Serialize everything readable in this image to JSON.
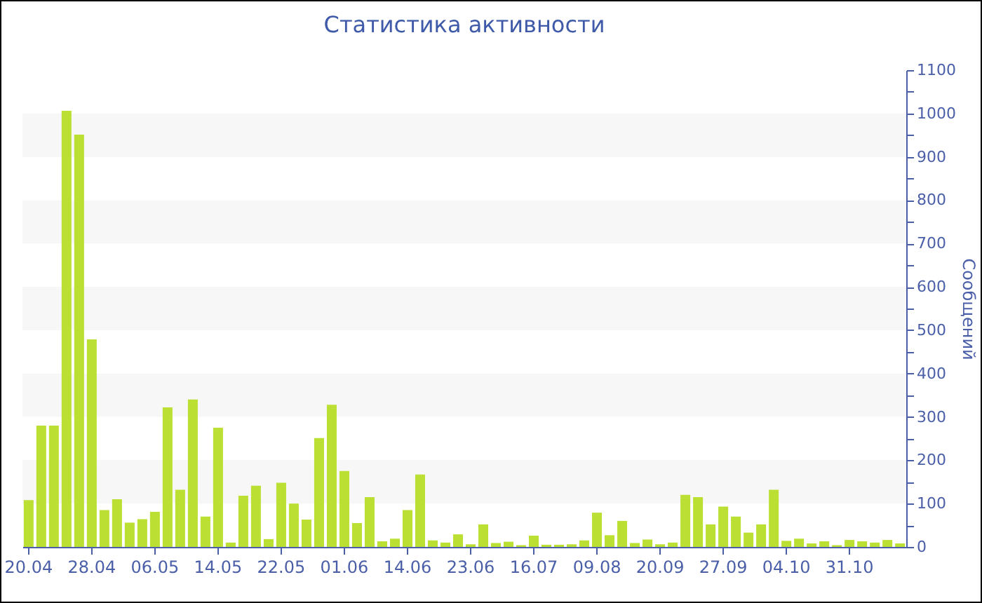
{
  "chart_data": {
    "type": "bar",
    "title": "Статистика активности",
    "ylabel": "Сообщений",
    "categories": [
      "20.04",
      null,
      null,
      null,
      null,
      "28.04",
      null,
      null,
      null,
      null,
      "06.05",
      null,
      null,
      null,
      null,
      "14.05",
      null,
      null,
      null,
      null,
      "22.05",
      null,
      null,
      null,
      null,
      "01.06",
      null,
      null,
      null,
      null,
      "14.06",
      null,
      null,
      null,
      null,
      "23.06",
      null,
      null,
      null,
      null,
      "16.07",
      null,
      null,
      null,
      null,
      "09.08",
      null,
      null,
      null,
      null,
      "20.09",
      null,
      null,
      null,
      null,
      "27.09",
      null,
      null,
      null,
      null,
      "04.10",
      null,
      null,
      null,
      null,
      "31.10",
      null,
      null,
      null,
      null
    ],
    "values": [
      108,
      280,
      280,
      1006,
      951,
      479,
      85,
      110,
      56,
      64,
      81,
      322,
      132,
      340,
      70,
      275,
      10,
      118,
      141,
      18,
      148,
      100,
      63,
      251,
      328,
      175,
      55,
      115,
      13,
      19,
      85,
      167,
      15,
      10,
      29,
      6,
      52,
      9,
      12,
      4,
      26,
      5,
      5,
      6,
      15,
      79,
      27,
      60,
      9,
      17,
      6,
      10,
      120,
      115,
      52,
      93,
      70,
      33,
      52,
      132,
      14,
      19,
      8,
      13,
      4,
      16,
      13,
      10,
      16,
      8
    ],
    "color": "#bbe033",
    "ylim": [
      0,
      1100
    ],
    "yticks": [
      0,
      {
        "value": 50,
        "label": null
      },
      100,
      {
        "value": 150,
        "label": null
      },
      200,
      {
        "value": 250,
        "label": null
      },
      300,
      {
        "value": 350,
        "label": null
      },
      400,
      {
        "value": 450,
        "label": null
      },
      500,
      {
        "value": 550,
        "label": null
      },
      600,
      {
        "value": 650,
        "label": null
      },
      700,
      {
        "value": 750,
        "label": null
      },
      800,
      {
        "value": 850,
        "label": null
      },
      900,
      {
        "value": 950,
        "label": null
      },
      1000,
      {
        "value": 1050,
        "label": null
      },
      1100
    ],
    "bands": [
      {
        "axis": "y",
        "from": 100,
        "to": 200,
        "color": "#f7f7f7"
      },
      {
        "axis": "y",
        "from": 300,
        "to": 400,
        "color": "#f7f7f7"
      },
      {
        "axis": "y",
        "from": 500,
        "to": 600,
        "color": "#f7f7f7"
      },
      {
        "axis": "y",
        "from": 700,
        "to": 800,
        "color": "#f7f7f7"
      },
      {
        "axis": "y",
        "from": 900,
        "to": 1000,
        "color": "#f7f7f7"
      }
    ]
  }
}
